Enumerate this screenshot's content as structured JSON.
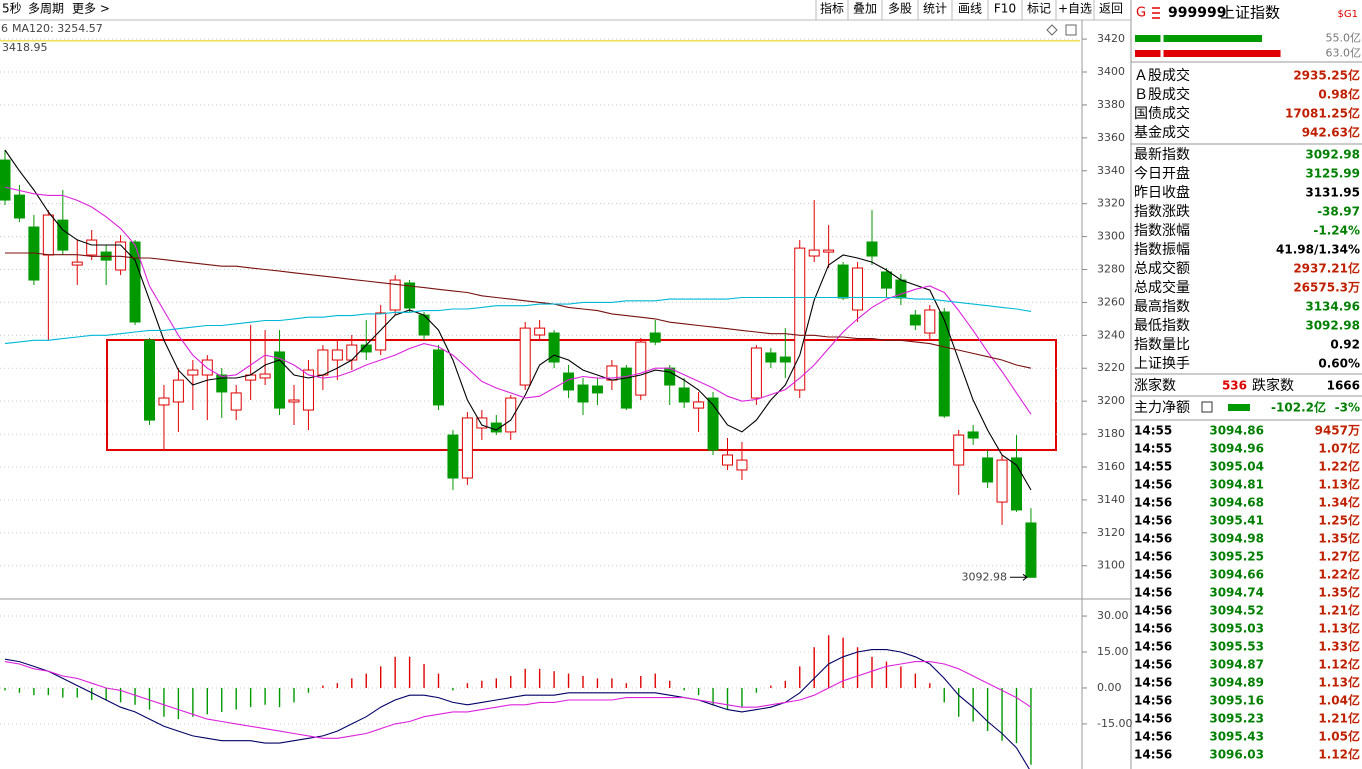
{
  "toolbar": {
    "left": [
      "5秒",
      "多周期",
      "更多 >"
    ],
    "buttons": [
      "指标",
      "叠加",
      "多股",
      "统计",
      "画线",
      "F10",
      "标记",
      "+自选",
      "返回"
    ]
  },
  "chart_data": [
    {
      "type": "candlestick",
      "legend_fragment": "6",
      "legend_fragment_color": "#009900",
      "open": [
        3346.5,
        3325.2,
        3305.8,
        3288.8,
        3310.0,
        3282.7,
        3288.8,
        3290.6,
        3279.7,
        3296.7,
        3237.1,
        3197.7,
        3199.5,
        3215.9,
        3215.9,
        3215.9,
        3194.6,
        3212.8,
        3214.1,
        3229.9,
        3199.5,
        3194.6,
        3215.9,
        3225.0,
        3225.0,
        3234.1,
        3231.1,
        3255.4,
        3271.8,
        3252.3,
        3231.1,
        3179.4,
        3153.3,
        3183.7,
        3186.7,
        3181.3,
        3209.8,
        3240.2,
        3241.4,
        3217.1,
        3209.8,
        3209.2,
        3212.8,
        3220.1,
        3203.7,
        3241.4,
        3220.1,
        3208.0,
        3195.8,
        3201.9,
        3161.2,
        3158.2,
        3201.9,
        3229.3,
        3226.8,
        3206.8,
        3288.2,
        3290.6,
        3282.7,
        3255.4,
        3296.7,
        3278.5,
        3273.6,
        3252.3,
        3241.4,
        3254.2,
        3161.2,
        3181.3,
        3165.5,
        3138.7,
        3165.5,
        3125.99
      ],
      "high": [
        3352.6,
        3331.3,
        3313.1,
        3316.1,
        3328.3,
        3297.9,
        3304.0,
        3294.9,
        3300.9,
        3297.9,
        3238.4,
        3209.8,
        3220.1,
        3225.0,
        3228.0,
        3220.1,
        3209.8,
        3246.3,
        3243.2,
        3243.2,
        3209.8,
        3225.0,
        3234.1,
        3237.1,
        3240.2,
        3249.3,
        3258.4,
        3276.6,
        3273.6,
        3254.2,
        3234.1,
        3182.5,
        3193.4,
        3194.6,
        3191.6,
        3203.7,
        3248.1,
        3249.3,
        3243.2,
        3222.0,
        3214.1,
        3214.1,
        3225.0,
        3222.0,
        3238.4,
        3249.3,
        3222.0,
        3214.1,
        3205.6,
        3205.6,
        3177.6,
        3175.2,
        3234.1,
        3232.3,
        3244.4,
        3297.9,
        3322.2,
        3307.0,
        3284.5,
        3284.5,
        3316.1,
        3280.9,
        3277.2,
        3255.4,
        3258.4,
        3256.6,
        3182.5,
        3185.5,
        3170.3,
        3167.3,
        3179.4,
        3134.96
      ],
      "low": [
        3319.2,
        3308.8,
        3270.6,
        3237.1,
        3288.8,
        3270.6,
        3285.7,
        3270.6,
        3276.6,
        3246.3,
        3185.5,
        3170.3,
        3181.3,
        3194.6,
        3188.5,
        3189.8,
        3188.5,
        3200.7,
        3209.8,
        3191.6,
        3185.5,
        3182.5,
        3206.8,
        3212.8,
        3218.9,
        3225.0,
        3228.0,
        3252.3,
        3254.2,
        3237.1,
        3194.6,
        3146.0,
        3149.1,
        3176.4,
        3179.4,
        3176.4,
        3206.8,
        3237.1,
        3220.1,
        3201.9,
        3191.6,
        3197.7,
        3206.8,
        3194.6,
        3200.7,
        3234.1,
        3197.7,
        3195.8,
        3181.3,
        3167.3,
        3158.2,
        3152.1,
        3197.7,
        3220.1,
        3214.1,
        3201.9,
        3284.5,
        3280.9,
        3261.4,
        3248.1,
        3282.7,
        3262.7,
        3258.4,
        3243.2,
        3237.1,
        3189.8,
        3143.0,
        3173.4,
        3147.2,
        3124.8,
        3132.7,
        3092.98
      ],
      "close": [
        3322.2,
        3311.3,
        3273.6,
        3313.1,
        3291.8,
        3284.5,
        3297.9,
        3285.7,
        3296.7,
        3248.1,
        3188.5,
        3201.9,
        3212.8,
        3218.9,
        3225.0,
        3205.6,
        3205.0,
        3215.9,
        3216.5,
        3195.8,
        3200.7,
        3218.9,
        3231.1,
        3231.1,
        3234.1,
        3229.9,
        3253.6,
        3273.6,
        3256.6,
        3240.2,
        3197.7,
        3153.3,
        3189.8,
        3189.8,
        3181.3,
        3201.9,
        3244.4,
        3244.4,
        3223.8,
        3206.8,
        3199.5,
        3205.0,
        3221.4,
        3195.8,
        3235.9,
        3235.9,
        3209.8,
        3199.5,
        3199.5,
        3170.3,
        3167.3,
        3164.2,
        3232.3,
        3223.8,
        3223.8,
        3293.0,
        3291.8,
        3291.8,
        3262.7,
        3280.9,
        3288.2,
        3268.7,
        3262.7,
        3246.3,
        3255.4,
        3191.0,
        3179.4,
        3177.6,
        3150.9,
        3164.2,
        3133.9,
        3092.98
      ],
      "up_color": "#e00000",
      "down_color": "#009900",
      "series": [
        {
          "color": "#000000",
          "values": [
            3352.6,
            3340,
            3328.3,
            3315,
            3304,
            3298,
            3294.9,
            3294.9,
            3294.9,
            3285.7,
            3261.4,
            3237.1,
            3218.9,
            3209.8,
            3212.8,
            3214.1,
            3214.1,
            3215.9,
            3222.0,
            3225.0,
            3215.9,
            3214.1,
            3215.9,
            3220.1,
            3225.0,
            3234.1,
            3243.2,
            3252.3,
            3255.4,
            3252.3,
            3243.2,
            3225.0,
            3200.7,
            3185.5,
            3182.5,
            3188.5,
            3203.7,
            3222.0,
            3228.0,
            3225.0,
            3218.9,
            3215.9,
            3212.8,
            3214.1,
            3215.9,
            3218.9,
            3217.7,
            3212.8,
            3206.8,
            3197.7,
            3185.5,
            3181.3,
            3188.5,
            3200.7,
            3209.8,
            3228.0,
            3261.4,
            3282.7,
            3288.8,
            3287.0,
            3284.5,
            3279.7,
            3273.6,
            3270.6,
            3267.5,
            3249.3,
            3225.0,
            3200.7,
            3182.5,
            3167.3,
            3161.2,
            3146.0
          ]
        },
        {
          "color": "#dd22dd",
          "values": [
            3330,
            3328,
            3326,
            3325,
            3325,
            3322,
            3318,
            3312,
            3305,
            3295,
            3270,
            3255,
            3240,
            3228,
            3220,
            3215,
            3216,
            3222,
            3228,
            3226,
            3222,
            3216,
            3214,
            3215,
            3218,
            3222,
            3225,
            3228,
            3232,
            3235,
            3233,
            3228,
            3220,
            3212,
            3208,
            3205,
            3202,
            3203,
            3208,
            3213,
            3215,
            3214,
            3214,
            3215,
            3217,
            3220,
            3220,
            3216,
            3212,
            3208,
            3203,
            3200,
            3201,
            3204,
            3207,
            3214,
            3222,
            3232,
            3242,
            3250,
            3257,
            3262,
            3265,
            3268,
            3270,
            3266,
            3255,
            3243,
            3230,
            3218,
            3205,
            3192
          ]
        },
        {
          "color": "#7a1010",
          "values": [
            3290,
            3290,
            3290,
            3289,
            3289,
            3289,
            3288,
            3288,
            3288,
            3287,
            3287,
            3286,
            3285,
            3284,
            3283,
            3282,
            3282,
            3281,
            3280,
            3279,
            3278,
            3277,
            3276,
            3275,
            3274,
            3273,
            3272,
            3271,
            3270,
            3269,
            3268,
            3267,
            3266,
            3264,
            3263,
            3262,
            3261,
            3260,
            3259,
            3257,
            3256,
            3255,
            3253,
            3252,
            3251,
            3250,
            3248,
            3247,
            3246,
            3245,
            3244,
            3243,
            3242,
            3241,
            3241,
            3240,
            3240,
            3239,
            3239,
            3238,
            3238,
            3237,
            3237,
            3236,
            3235,
            3233,
            3231,
            3229,
            3227,
            3225,
            3222,
            3220
          ]
        },
        {
          "name": "MA120",
          "legend_label": "MA120: 3254.57",
          "color": "#00b8d8",
          "values": [
            3235,
            3236,
            3237,
            3237,
            3238,
            3239,
            3240,
            3240,
            3241,
            3242,
            3243,
            3243,
            3244,
            3245,
            3246,
            3246,
            3247,
            3248,
            3249,
            3249,
            3250,
            3251,
            3251,
            3252,
            3252,
            3253,
            3253,
            3254,
            3254,
            3255,
            3255,
            3256,
            3256,
            3257,
            3258,
            3258,
            3258,
            3259,
            3259,
            3259,
            3260,
            3260,
            3260,
            3261,
            3261,
            3261,
            3262,
            3262,
            3262,
            3262,
            3262,
            3263,
            3263,
            3263,
            3263,
            3263,
            3263,
            3263,
            3263,
            3263,
            3263,
            3263,
            3263,
            3262,
            3262,
            3261,
            3260,
            3259,
            3258,
            3257,
            3256,
            3254.57
          ]
        }
      ],
      "high_mark": 3418.95,
      "high_mark_color": "#e8d000",
      "ylim": [
        3080.4,
        3431.6
      ],
      "yticks": [
        3100,
        3120,
        3140,
        3160,
        3180,
        3200,
        3220,
        3240,
        3260,
        3280,
        3300,
        3320,
        3340,
        3360,
        3380,
        3400,
        3420
      ],
      "grid": true
    },
    {
      "type": "macd",
      "values": [
        -1,
        -2,
        -3,
        -3,
        -4,
        -4,
        -5,
        -5,
        -6,
        -7,
        -9,
        -12,
        -13,
        -12,
        -11,
        -10,
        -9,
        -8,
        -7,
        -8,
        -6,
        -2,
        1,
        2,
        4,
        6,
        9,
        13,
        13,
        10,
        6,
        -1,
        2,
        3,
        4,
        5,
        8,
        8,
        7,
        6,
        5,
        4,
        4,
        2,
        5,
        6,
        3,
        -1,
        -3,
        -7,
        -9,
        -8,
        -2,
        1,
        3,
        9,
        17,
        22,
        21,
        17,
        13,
        11,
        9,
        6,
        2,
        -6,
        -12,
        -14,
        -18,
        -22,
        -23,
        -32
      ],
      "up_color": "#e00000",
      "down_color": "#009900",
      "series": [
        {
          "color": "#000066",
          "values": [
            12,
            11,
            9,
            7,
            4,
            1,
            -2,
            -5,
            -8,
            -10,
            -13,
            -16,
            -18,
            -20,
            -21,
            -22,
            -22,
            -22,
            -23,
            -23,
            -22,
            -21,
            -20,
            -18,
            -15,
            -12,
            -8,
            -5,
            -3,
            -3,
            -4,
            -6,
            -7,
            -6,
            -5,
            -4,
            -3,
            -3,
            -3,
            -2,
            -2,
            -2,
            -2,
            -2,
            -2,
            -2,
            -3,
            -4,
            -5,
            -7,
            -9,
            -10,
            -9,
            -8,
            -6,
            -2,
            4,
            10,
            13,
            15,
            16,
            16,
            15,
            13,
            10,
            4,
            -3,
            -8,
            -14,
            -19,
            -25,
            -35
          ]
        },
        {
          "color": "#dd22dd",
          "values": [
            11,
            10,
            8,
            7,
            5,
            4,
            2,
            0,
            -1,
            -3,
            -5,
            -7,
            -9,
            -11,
            -13,
            -14,
            -15,
            -16,
            -17,
            -18,
            -19,
            -20,
            -21,
            -21,
            -20,
            -19,
            -17,
            -15,
            -14,
            -12,
            -11,
            -10,
            -10,
            -9,
            -8,
            -7,
            -7,
            -6,
            -6,
            -5,
            -5,
            -5,
            -5,
            -4,
            -4,
            -4,
            -4,
            -4,
            -5,
            -6,
            -7,
            -8,
            -8,
            -7,
            -6,
            -5,
            -3,
            0,
            3,
            5,
            7,
            9,
            10,
            11,
            11,
            10,
            8,
            5,
            2,
            -1,
            -4,
            -8
          ]
        }
      ],
      "ylim": [
        -33.8,
        36.7
      ],
      "yticks": [
        {
          "value": -15,
          "label": "-15.00"
        },
        {
          "value": 0,
          "label": "0.00"
        },
        {
          "value": 15,
          "label": "15.00"
        },
        {
          "value": 30,
          "label": "30.00"
        }
      ],
      "grid": true
    }
  ],
  "side_panel": {
    "header": {
      "market": "G",
      "code": "999999",
      "name": "上证指数",
      "tag": "$G1"
    },
    "bars": [
      {
        "value": 55.0,
        "label": "55.0亿",
        "color": "#009900"
      },
      {
        "value": 63.0,
        "label": "63.0亿",
        "color": "#e00000"
      }
    ],
    "stats": [
      {
        "label": "Ａ股成交",
        "value": "2935.25亿",
        "color": "#c02000"
      },
      {
        "label": "Ｂ股成交",
        "value": "0.98亿",
        "color": "#c02000"
      },
      {
        "label": "国债成交",
        "value": "17081.25亿",
        "color": "#c02000"
      },
      {
        "label": "基金成交",
        "value": "942.63亿",
        "color": "#c02000"
      },
      {
        "label": "最新指数",
        "value": "3092.98",
        "color": "#008000"
      },
      {
        "label": "今日开盘",
        "value": "3125.99",
        "color": "#008000"
      },
      {
        "label": "昨日收盘",
        "value": "3131.95",
        "color": "#000000"
      },
      {
        "label": "指数涨跌",
        "value": "-38.97",
        "color": "#008000"
      },
      {
        "label": "指数涨幅",
        "value": "-1.24%",
        "color": "#008000"
      },
      {
        "label": "指数振幅",
        "value": "41.98/1.34%",
        "color": "#000000"
      },
      {
        "label": "总成交额",
        "value": "2937.21亿",
        "color": "#c02000"
      },
      {
        "label": "总成交量",
        "value": "26575.3万",
        "color": "#c02000"
      },
      {
        "label": "最高指数",
        "value": "3134.96",
        "color": "#008000"
      },
      {
        "label": "最低指数",
        "value": "3092.98",
        "color": "#008000"
      },
      {
        "label": "指数量比",
        "value": "0.92",
        "color": "#000000"
      },
      {
        "label": "上证换手",
        "value": "0.60%",
        "color": "#000000"
      }
    ],
    "breadth": {
      "up_label": "涨家数",
      "up": 536,
      "down_label": "跌家数",
      "down": 1666
    },
    "flow": {
      "label": "主力净额",
      "value": "-102.2亿",
      "pct": "-3%"
    },
    "ticks": [
      [
        "14:55",
        "3094.86",
        "9457万"
      ],
      [
        "14:55",
        "3094.96",
        "1.07亿"
      ],
      [
        "14:55",
        "3095.04",
        "1.22亿"
      ],
      [
        "14:56",
        "3094.81",
        "1.13亿"
      ],
      [
        "14:56",
        "3094.68",
        "1.34亿"
      ],
      [
        "14:56",
        "3095.41",
        "1.25亿"
      ],
      [
        "14:56",
        "3094.98",
        "1.35亿"
      ],
      [
        "14:56",
        "3095.25",
        "1.27亿"
      ],
      [
        "14:56",
        "3094.66",
        "1.22亿"
      ],
      [
        "14:56",
        "3094.74",
        "1.35亿"
      ],
      [
        "14:56",
        "3094.52",
        "1.21亿"
      ],
      [
        "14:56",
        "3095.03",
        "1.13亿"
      ],
      [
        "14:56",
        "3095.53",
        "1.33亿"
      ],
      [
        "14:56",
        "3094.87",
        "1.12亿"
      ],
      [
        "14:56",
        "3094.89",
        "1.13亿"
      ],
      [
        "14:56",
        "3095.16",
        "1.04亿"
      ],
      [
        "14:56",
        "3095.23",
        "1.21亿"
      ],
      [
        "14:56",
        "3095.43",
        "1.05亿"
      ],
      [
        "14:56",
        "3096.03",
        "1.12亿"
      ]
    ]
  }
}
